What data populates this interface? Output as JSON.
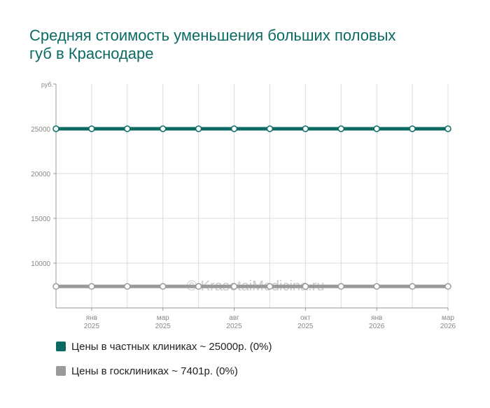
{
  "title": "Средняя стоимость уменьшения больших половых губ в Краснодаре",
  "watermark": "© KrasotaiMedicina.ru",
  "colors": {
    "private": "#0b6b63",
    "public": "#9a9a9a",
    "grid": "#dddddd",
    "axis": "#999999"
  },
  "legend": [
    {
      "label": "Цены в частных клиниках ~ 25000р. (0%)",
      "color": "#0b6b63"
    },
    {
      "label": "Цены в госклиниках ~ 7401р. (0%)",
      "color": "#9a9a9a"
    }
  ],
  "chart_data": {
    "type": "line",
    "y_unit": "руб.",
    "ylim": [
      5000,
      30000
    ],
    "y_ticks": [
      10000,
      15000,
      20000,
      25000
    ],
    "grid": true,
    "x_count": 12,
    "x_tick_labels": [
      {
        "index": 1,
        "month": "янв",
        "year": "2025"
      },
      {
        "index": 3,
        "month": "мар",
        "year": "2025"
      },
      {
        "index": 5,
        "month": "авг",
        "year": "2025"
      },
      {
        "index": 7,
        "month": "окт",
        "year": "2025"
      },
      {
        "index": 9,
        "month": "янв",
        "year": "2026"
      },
      {
        "index": 11,
        "month": "мар",
        "year": "2026"
      }
    ],
    "series": [
      {
        "name": "Цены в частных клиниках",
        "color": "#0b6b63",
        "values": [
          25000,
          25000,
          25000,
          25000,
          25000,
          25000,
          25000,
          25000,
          25000,
          25000,
          25000,
          25000
        ]
      },
      {
        "name": "Цены в госклиниках",
        "color": "#9a9a9a",
        "values": [
          7401,
          7401,
          7401,
          7401,
          7401,
          7401,
          7401,
          7401,
          7401,
          7401,
          7401,
          7401
        ]
      }
    ]
  }
}
